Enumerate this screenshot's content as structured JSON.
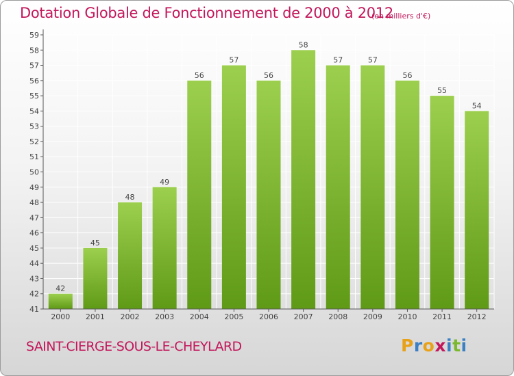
{
  "header": {
    "title": "Dotation Globale de Fonctionnement de 2000 à 2012",
    "subtitle": "(en milliers d'€)"
  },
  "footer": {
    "commune": "SAINT-CIERGE-SOUS-LE-CHEYLARD",
    "brand": "Proxiti"
  },
  "brand_letters": [
    {
      "ch": "P",
      "color": "#e8a21a"
    },
    {
      "ch": "r",
      "color": "#3b7fc4"
    },
    {
      "ch": "o",
      "color": "#e8a21a"
    },
    {
      "ch": "x",
      "color": "#c2185b"
    },
    {
      "ch": "i",
      "color": "#3b7fc4"
    },
    {
      "ch": "t",
      "color": "#7cb82f"
    },
    {
      "ch": "i",
      "color": "#3b7fc4"
    }
  ],
  "colors": {
    "accent": "#c2185b",
    "bar_top": "#9ccf4e",
    "bar_bottom": "#5f9a16",
    "grid": "#ffffff",
    "axis": "#555555"
  },
  "chart_data": {
    "type": "bar",
    "categories": [
      "2000",
      "2001",
      "2002",
      "2003",
      "2004",
      "2005",
      "2006",
      "2007",
      "2008",
      "2009",
      "2010",
      "2011",
      "2012"
    ],
    "values": [
      42,
      45,
      48,
      49,
      56,
      57,
      56,
      58,
      57,
      57,
      56,
      55,
      54
    ],
    "ylim": [
      41,
      59
    ],
    "yticks": [
      41,
      42,
      43,
      44,
      45,
      46,
      47,
      48,
      49,
      50,
      51,
      52,
      53,
      54,
      55,
      56,
      57,
      58,
      59
    ],
    "grid": true,
    "xlabel": "",
    "ylabel": ""
  }
}
